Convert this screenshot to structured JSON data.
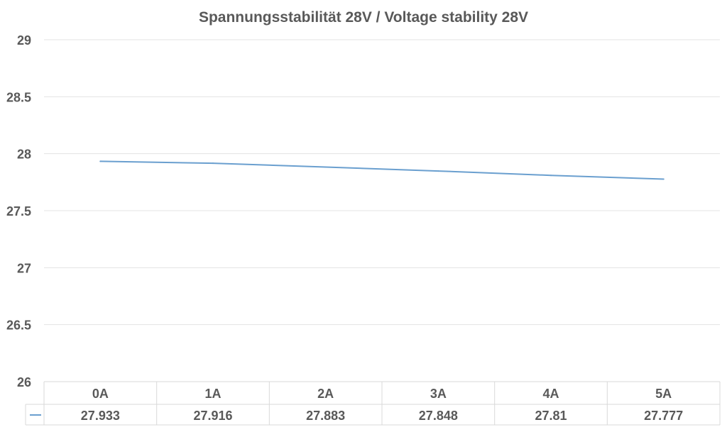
{
  "chart_data": {
    "type": "line",
    "title": "Spannungsstabilität 28V / Voltage stability 28V",
    "xlabel": "",
    "ylabel": "",
    "categories": [
      "0A",
      "1A",
      "2A",
      "3A",
      "4A",
      "5A"
    ],
    "series": [
      {
        "values": [
          27.933,
          27.916,
          27.883,
          27.848,
          27.81,
          27.777
        ]
      }
    ],
    "value_labels": [
      "27.933",
      "27.916",
      "27.883",
      "27.848",
      "27.81",
      "27.777"
    ],
    "ylim": [
      26,
      29
    ],
    "yticks": [
      "26",
      "26.5",
      "27",
      "27.5",
      "28",
      "28.5",
      "29"
    ],
    "grid": true,
    "data_table": true,
    "colors": {
      "line": "#6a9fcf",
      "grid": "#e3e3e3",
      "table_border": "#d9d9d9",
      "text": "#595959"
    }
  }
}
